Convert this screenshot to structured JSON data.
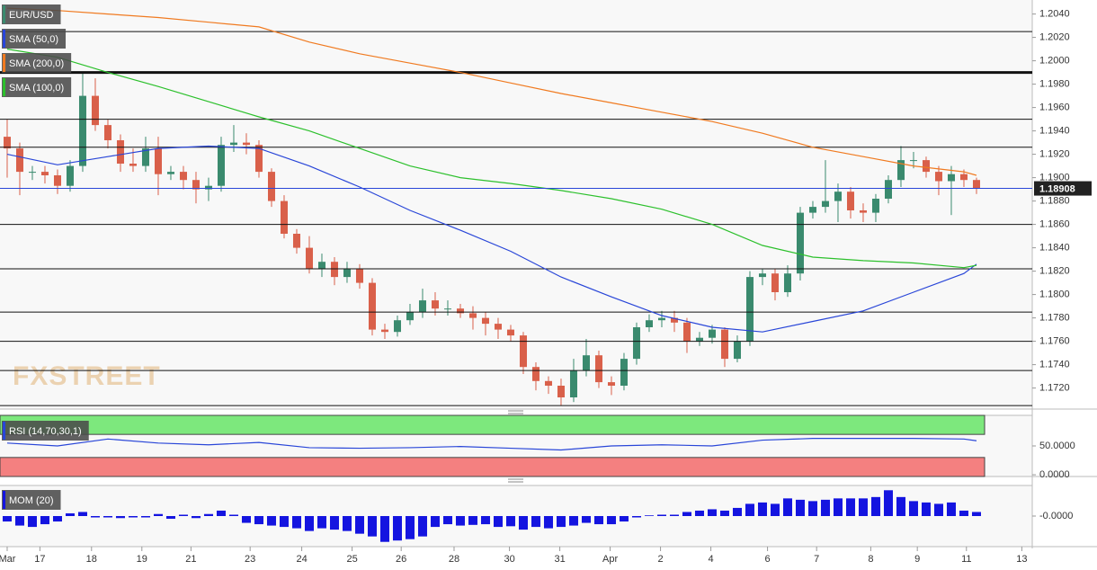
{
  "chart_data": [
    {
      "type": "candlestick",
      "title": "EUR/USD",
      "watermark": "FXSTREET",
      "legend_color": "#3a8a6e",
      "up_color": "#3a8a6e",
      "down_color": "#d9604a",
      "xlim": [
        -0.57,
        81.43
      ],
      "ylim": [
        1.1702,
        1.2052
      ],
      "xticks": [
        {
          "value": 0,
          "label": "Mar"
        },
        {
          "value": 2.6,
          "label": "17"
        },
        {
          "value": 6.7,
          "label": "18"
        },
        {
          "value": 10.7,
          "label": "19"
        },
        {
          "value": 14.6,
          "label": "21"
        },
        {
          "value": 19.3,
          "label": "23"
        },
        {
          "value": 23.4,
          "label": "24"
        },
        {
          "value": 27.4,
          "label": "25"
        },
        {
          "value": 31.3,
          "label": "26"
        },
        {
          "value": 35.5,
          "label": "28"
        },
        {
          "value": 39.9,
          "label": "30"
        },
        {
          "value": 43.9,
          "label": "31"
        },
        {
          "value": 47.9,
          "label": "Apr"
        },
        {
          "value": 51.9,
          "label": "2"
        },
        {
          "value": 55.9,
          "label": "4"
        },
        {
          "value": 60.4,
          "label": "6"
        },
        {
          "value": 64.3,
          "label": "7"
        },
        {
          "value": 68.6,
          "label": "8"
        },
        {
          "value": 72.3,
          "label": "9"
        },
        {
          "value": 76.2,
          "label": "11"
        },
        {
          "value": 80.6,
          "label": "13"
        }
      ],
      "yticks": [
        {
          "value": 1.204,
          "label": "1.2040"
        },
        {
          "value": 1.202,
          "label": "1.2020"
        },
        {
          "value": 1.2,
          "label": "1.2000"
        },
        {
          "value": 1.198,
          "label": "1.1980"
        },
        {
          "value": 1.196,
          "label": "1.1960"
        },
        {
          "value": 1.194,
          "label": "1.1940"
        },
        {
          "value": 1.192,
          "label": "1.1920"
        },
        {
          "value": 1.19,
          "label": "1.1900"
        },
        {
          "value": 1.188,
          "label": "1.1880"
        },
        {
          "value": 1.186,
          "label": "1.1860"
        },
        {
          "value": 1.184,
          "label": "1.1840"
        },
        {
          "value": 1.182,
          "label": "1.1820"
        },
        {
          "value": 1.18,
          "label": "1.1800"
        },
        {
          "value": 1.178,
          "label": "1.1780"
        },
        {
          "value": 1.176,
          "label": "1.1760"
        },
        {
          "value": 1.174,
          "label": "1.1740"
        },
        {
          "value": 1.172,
          "label": "1.1720"
        }
      ],
      "levels": [
        {
          "value": 1.2025
        },
        {
          "value": 1.199,
          "strong": true
        },
        {
          "value": 1.195
        },
        {
          "value": 1.1926
        },
        {
          "value": 1.186
        },
        {
          "value": 1.1822
        },
        {
          "value": 1.1785
        },
        {
          "value": 1.176
        },
        {
          "value": 1.1735
        },
        {
          "value": 1.1705
        }
      ],
      "last_price": 1.18908,
      "last_price_color": "#2946d8",
      "ohlc": [
        [
          1.1935,
          1.195,
          1.19,
          1.1925
        ],
        [
          1.1925,
          1.193,
          1.1885,
          1.1905
        ],
        [
          1.1905,
          1.191,
          1.1898,
          1.1905
        ],
        [
          1.1905,
          1.191,
          1.1895,
          1.1902
        ],
        [
          1.1902,
          1.1907,
          1.1886,
          1.1893
        ],
        [
          1.1893,
          1.1915,
          1.1888,
          1.191
        ],
        [
          1.191,
          1.199,
          1.1905,
          1.197
        ],
        [
          1.197,
          1.1985,
          1.194,
          1.1945
        ],
        [
          1.1945,
          1.195,
          1.1925,
          1.1932
        ],
        [
          1.1932,
          1.1937,
          1.1905,
          1.1912
        ],
        [
          1.1912,
          1.1925,
          1.1905,
          1.191
        ],
        [
          1.191,
          1.1935,
          1.1905,
          1.1925
        ],
        [
          1.1925,
          1.1935,
          1.1885,
          1.1903
        ],
        [
          1.1903,
          1.191,
          1.1898,
          1.1905
        ],
        [
          1.1905,
          1.191,
          1.189,
          1.1898
        ],
        [
          1.1898,
          1.1905,
          1.1878,
          1.189
        ],
        [
          1.189,
          1.19,
          1.188,
          1.1893
        ],
        [
          1.1893,
          1.1935,
          1.1888,
          1.1928
        ],
        [
          1.1928,
          1.1945,
          1.1922,
          1.193
        ],
        [
          1.193,
          1.1938,
          1.192,
          1.1928
        ],
        [
          1.1928,
          1.1932,
          1.19,
          1.1905
        ],
        [
          1.1905,
          1.1908,
          1.1875,
          1.188
        ],
        [
          1.188,
          1.1885,
          1.1848,
          1.1852
        ],
        [
          1.1852,
          1.1856,
          1.1835,
          1.184
        ],
        [
          1.184,
          1.185,
          1.1818,
          1.1822
        ],
        [
          1.1822,
          1.1835,
          1.1815,
          1.1828
        ],
        [
          1.1828,
          1.1832,
          1.1808,
          1.1815
        ],
        [
          1.1815,
          1.1828,
          1.181,
          1.1822
        ],
        [
          1.1822,
          1.1826,
          1.1805,
          1.181
        ],
        [
          1.181,
          1.1814,
          1.1765,
          1.177
        ],
        [
          1.177,
          1.1775,
          1.1762,
          1.1768
        ],
        [
          1.1768,
          1.1782,
          1.1764,
          1.1778
        ],
        [
          1.1778,
          1.1792,
          1.1774,
          1.1785
        ],
        [
          1.1785,
          1.1805,
          1.178,
          1.1795
        ],
        [
          1.1795,
          1.1802,
          1.1782,
          1.1788
        ],
        [
          1.1788,
          1.1795,
          1.1782,
          1.1788
        ],
        [
          1.1788,
          1.1792,
          1.178,
          1.1784
        ],
        [
          1.1784,
          1.179,
          1.177,
          1.178
        ],
        [
          1.178,
          1.1785,
          1.1765,
          1.1775
        ],
        [
          1.1775,
          1.178,
          1.1762,
          1.177
        ],
        [
          1.177,
          1.1774,
          1.176,
          1.1765
        ],
        [
          1.1765,
          1.1768,
          1.1732,
          1.1738
        ],
        [
          1.1738,
          1.1742,
          1.1718,
          1.1726
        ],
        [
          1.1726,
          1.173,
          1.1715,
          1.1722
        ],
        [
          1.1722,
          1.1728,
          1.1705,
          1.1712
        ],
        [
          1.1712,
          1.1745,
          1.1708,
          1.1735
        ],
        [
          1.1735,
          1.1762,
          1.173,
          1.1748
        ],
        [
          1.1748,
          1.1752,
          1.172,
          1.1725
        ],
        [
          1.1725,
          1.173,
          1.1714,
          1.1722
        ],
        [
          1.1722,
          1.175,
          1.1718,
          1.1745
        ],
        [
          1.1745,
          1.1776,
          1.174,
          1.1772
        ],
        [
          1.1772,
          1.1783,
          1.1768,
          1.1778
        ],
        [
          1.1778,
          1.1786,
          1.1772,
          1.178
        ],
        [
          1.178,
          1.1786,
          1.1768,
          1.1776
        ],
        [
          1.1776,
          1.178,
          1.175,
          1.176
        ],
        [
          1.176,
          1.1768,
          1.1756,
          1.1763
        ],
        [
          1.1763,
          1.1774,
          1.1758,
          1.177
        ],
        [
          1.177,
          1.1772,
          1.1738,
          1.1745
        ],
        [
          1.1745,
          1.1765,
          1.1742,
          1.176
        ],
        [
          1.176,
          1.182,
          1.1756,
          1.1815
        ],
        [
          1.1815,
          1.1822,
          1.1808,
          1.1818
        ],
        [
          1.1818,
          1.1822,
          1.1795,
          1.1802
        ],
        [
          1.1802,
          1.1825,
          1.1798,
          1.1818
        ],
        [
          1.1818,
          1.1875,
          1.1812,
          1.187
        ],
        [
          1.187,
          1.188,
          1.1865,
          1.1875
        ],
        [
          1.1875,
          1.1915,
          1.187,
          1.188
        ],
        [
          1.188,
          1.1895,
          1.1862,
          1.1888
        ],
        [
          1.1888,
          1.1892,
          1.1865,
          1.1872
        ],
        [
          1.1872,
          1.1878,
          1.1862,
          1.187
        ],
        [
          1.187,
          1.1886,
          1.1862,
          1.1882
        ],
        [
          1.1882,
          1.1902,
          1.1878,
          1.1898
        ],
        [
          1.1898,
          1.1927,
          1.1892,
          1.1915
        ],
        [
          1.1915,
          1.1922,
          1.1908,
          1.1915
        ],
        [
          1.1915,
          1.1918,
          1.19,
          1.1905
        ],
        [
          1.1905,
          1.191,
          1.1885,
          1.1897
        ],
        [
          1.1897,
          1.191,
          1.1868,
          1.1903
        ],
        [
          1.1903,
          1.1907,
          1.1892,
          1.1898
        ],
        [
          1.1898,
          1.19,
          1.1886,
          1.1891
        ]
      ],
      "series": [
        {
          "name": "SMA (50,0)",
          "color": "#2946d8",
          "x": [
            0,
            4,
            8,
            12,
            16,
            20,
            24,
            28,
            32,
            36,
            40,
            44,
            48,
            52,
            56,
            60,
            64,
            68,
            72,
            76,
            77
          ],
          "values": [
            1.192,
            1.1911,
            1.1918,
            1.1925,
            1.1927,
            1.1925,
            1.191,
            1.1892,
            1.1872,
            1.1855,
            1.1837,
            1.1815,
            1.1798,
            1.1782,
            1.1772,
            1.1768,
            1.1777,
            1.1786,
            1.1802,
            1.1818,
            1.1826
          ]
        },
        {
          "name": "SMA (200,0)",
          "color": "#f07a20",
          "x": [
            0,
            4,
            8,
            12,
            16,
            20,
            24,
            28,
            32,
            36,
            40,
            44,
            48,
            52,
            56,
            60,
            64,
            68,
            72,
            76,
            77
          ],
          "values": [
            1.2045,
            1.2043,
            1.204,
            1.2037,
            1.2033,
            1.2029,
            1.2016,
            1.2006,
            1.1998,
            1.199,
            1.1981,
            1.1972,
            1.1964,
            1.1956,
            1.1948,
            1.1938,
            1.1926,
            1.1918,
            1.191,
            1.1905,
            1.1902
          ]
        },
        {
          "name": "SMA (100,0)",
          "color": "#2cc02c",
          "x": [
            0,
            4,
            8,
            12,
            16,
            20,
            24,
            28,
            32,
            36,
            40,
            44,
            48,
            52,
            56,
            60,
            64,
            68,
            72,
            76,
            77
          ],
          "values": [
            1.201,
            1.2003,
            1.199,
            1.1978,
            1.1965,
            1.1952,
            1.194,
            1.1925,
            1.191,
            1.19,
            1.1895,
            1.1889,
            1.1882,
            1.1873,
            1.186,
            1.1842,
            1.1832,
            1.1829,
            1.1827,
            1.1823,
            1.1825
          ]
        }
      ]
    },
    {
      "type": "line",
      "title": "RSI (14,70,30,1)",
      "color": "#2946d8",
      "legend_color": "#2946d8",
      "overbought": 70,
      "oversold": 30,
      "overbought_color": "#7de87d",
      "oversold_color": "#f48080",
      "xlim": [
        -0.57,
        81.43
      ],
      "ylim": [
        -3,
        103
      ],
      "yticks": [
        {
          "value": 50,
          "label": "50.0000"
        },
        {
          "value": 0,
          "label": "0.0000"
        }
      ],
      "x": [
        0,
        4,
        8,
        12,
        16,
        20,
        24,
        28,
        32,
        36,
        40,
        44,
        48,
        52,
        56,
        60,
        64,
        68,
        72,
        76,
        77
      ],
      "values": [
        55,
        50,
        62,
        55,
        52,
        56,
        47,
        46,
        47,
        49,
        46,
        43,
        50,
        52,
        50,
        60,
        63,
        63,
        63,
        62,
        59
      ]
    },
    {
      "type": "bar",
      "title": "MOM (20)",
      "color": "#1414e0",
      "legend_color": "#1414e0",
      "xlim": [
        -0.57,
        81.43
      ],
      "ylim": [
        -0.0045,
        0.0045
      ],
      "yticks": [
        {
          "value": 0,
          "label": "-0.0000"
        }
      ],
      "values": [
        -0.0008,
        -0.0014,
        -0.0016,
        -0.0012,
        -0.0008,
        0.0004,
        0.0006,
        -0.0002,
        -0.0002,
        -0.0003,
        -0.0002,
        -0.0002,
        0.0003,
        -0.0004,
        0.0002,
        -0.0003,
        0.0003,
        0.0008,
        0.0002,
        -0.001,
        -0.0012,
        -0.0014,
        -0.0016,
        -0.0018,
        -0.0022,
        -0.0018,
        -0.002,
        -0.0022,
        -0.0026,
        -0.003,
        -0.0038,
        -0.0036,
        -0.0034,
        -0.003,
        -0.0016,
        -0.0012,
        -0.0014,
        -0.0013,
        -0.0012,
        -0.0016,
        -0.0015,
        -0.002,
        -0.0016,
        -0.0018,
        -0.0016,
        -0.0014,
        -0.001,
        -0.0012,
        -0.0012,
        -0.0008,
        -0.0002,
        0.0001,
        0.0002,
        0.0002,
        0.0006,
        0.0008,
        0.001,
        0.0008,
        0.0012,
        0.0018,
        0.002,
        0.0018,
        0.0026,
        0.0024,
        0.0022,
        0.0024,
        0.0026,
        0.0026,
        0.0026,
        0.0028,
        0.0038,
        0.0028,
        0.0022,
        0.002,
        0.0018,
        0.002,
        0.0008,
        0.0006
      ]
    }
  ]
}
